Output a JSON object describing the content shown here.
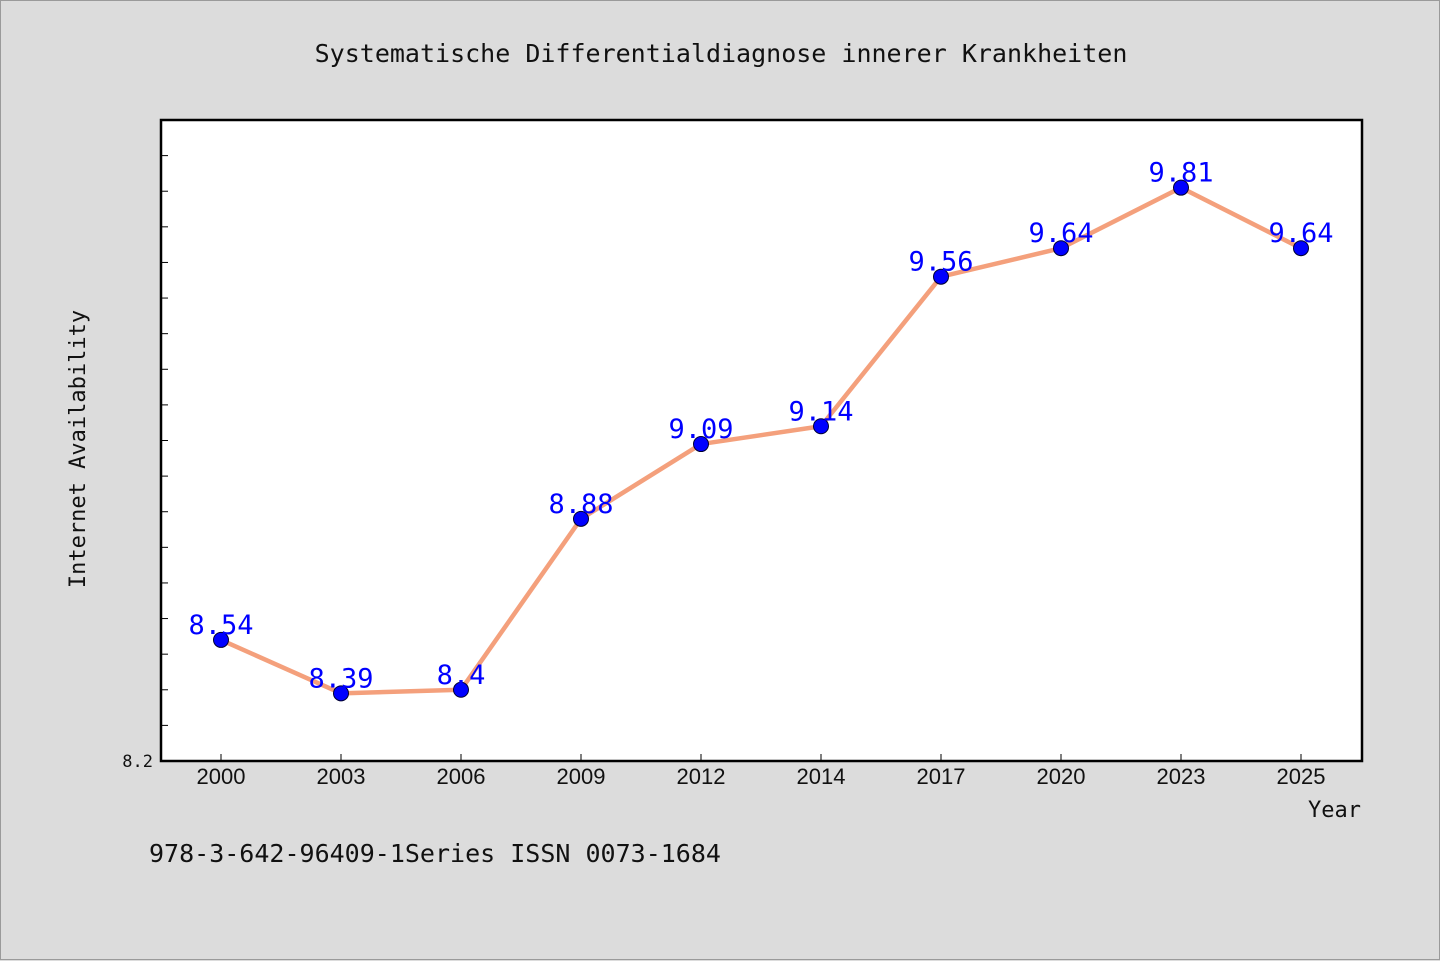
{
  "chart_data": {
    "type": "line",
    "title": "Systematische Differentialdiagnose innerer Krankheiten",
    "xlabel": "Year",
    "ylabel": "Internet Availability",
    "categories": [
      "2000",
      "2003",
      "2006",
      "2009",
      "2012",
      "2014",
      "2017",
      "2020",
      "2023",
      "2025"
    ],
    "series": [
      {
        "values": [
          8.54,
          8.39,
          8.4,
          8.88,
          9.09,
          9.14,
          9.56,
          9.64,
          9.81,
          9.64
        ],
        "labels": [
          "8.54",
          "8.39",
          "8.4",
          "8.88",
          "9.09",
          "9.14",
          "9.56",
          "9.64",
          "9.81",
          "9.64"
        ]
      }
    ],
    "ylim": [
      8.2,
      10.0
    ],
    "y_tick_min_label": "8.2",
    "grid": false,
    "legend": "none",
    "line_color": "#f4a07c",
    "marker_color": "#0000ff",
    "label_color": "#0000ff"
  },
  "footer": {
    "text": "978-3-642-96409-1Series ISSN 0073-1684"
  }
}
